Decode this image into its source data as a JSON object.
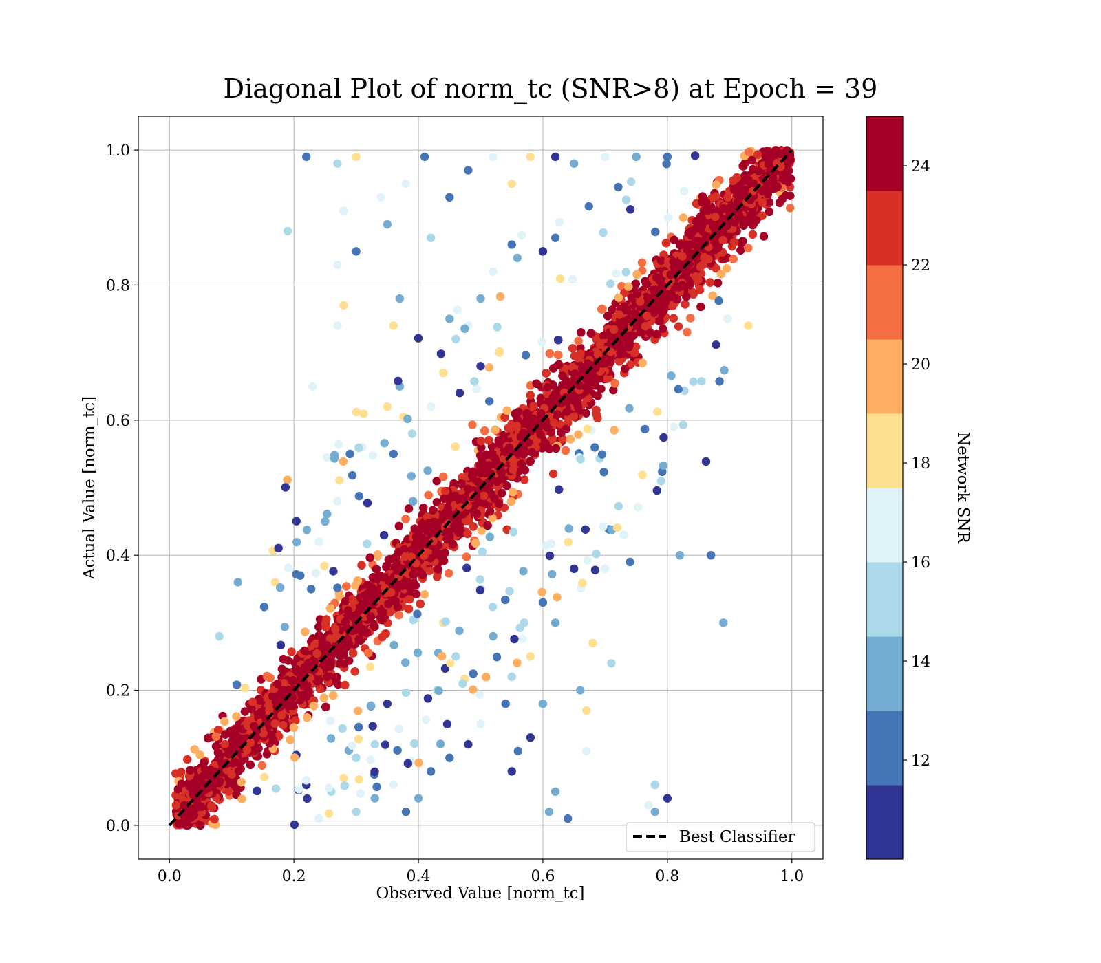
{
  "chart_data": {
    "type": "scatter",
    "title": "Diagonal Plot of norm_tc (SNR>8) at Epoch = 39",
    "xlabel": "Observed Value [norm_tc]",
    "ylabel": "Actual Value [norm_tc]",
    "xlim": [
      -0.05,
      1.05
    ],
    "ylim": [
      -0.05,
      1.05
    ],
    "xticks": [
      "0.0",
      "0.2",
      "0.4",
      "0.6",
      "0.8",
      "1.0"
    ],
    "yticks": [
      "0.0",
      "0.2",
      "0.4",
      "0.6",
      "0.8",
      "1.0"
    ],
    "grid": true,
    "legend": {
      "placement": "lower right",
      "entries": [
        "Best Classifier"
      ]
    },
    "reference_line": {
      "name": "Best Classifier",
      "style": "dashed",
      "color": "#000000",
      "x": [
        0,
        1
      ],
      "y": [
        0,
        1
      ]
    },
    "colorbar": {
      "label": "Network SNR",
      "range": [
        10,
        25
      ],
      "ticks": [
        "12",
        "14",
        "16",
        "18",
        "20",
        "22",
        "24"
      ],
      "colors": [
        "#313695",
        "#4575b4",
        "#74add1",
        "#abd9e9",
        "#e0f3f8",
        "#fee090",
        "#fdae61",
        "#f46d43",
        "#d73027",
        "#a50026"
      ]
    },
    "scatter_description_points": {
      "band_center": "y = x",
      "outliers": [
        [
          0.19,
          0.88
        ],
        [
          0.22,
          0.99
        ],
        [
          0.27,
          0.98
        ],
        [
          0.3,
          0.99
        ],
        [
          0.28,
          0.91
        ],
        [
          0.27,
          0.83
        ],
        [
          0.3,
          0.85
        ],
        [
          0.28,
          0.77
        ],
        [
          0.27,
          0.74
        ],
        [
          0.23,
          0.65
        ],
        [
          0.34,
          0.93
        ],
        [
          0.35,
          0.89
        ],
        [
          0.38,
          0.95
        ],
        [
          0.41,
          0.99
        ],
        [
          0.42,
          0.87
        ],
        [
          0.45,
          0.93
        ],
        [
          0.48,
          0.97
        ],
        [
          0.52,
          0.99
        ],
        [
          0.55,
          0.95
        ],
        [
          0.58,
          0.99
        ],
        [
          0.62,
          0.99
        ],
        [
          0.65,
          0.98
        ],
        [
          0.7,
          0.99
        ],
        [
          0.75,
          0.99
        ],
        [
          0.8,
          0.99
        ],
        [
          0.37,
          0.78
        ],
        [
          0.36,
          0.74
        ],
        [
          0.4,
          0.72
        ],
        [
          0.45,
          0.75
        ],
        [
          0.5,
          0.78
        ],
        [
          0.52,
          0.82
        ],
        [
          0.55,
          0.86
        ],
        [
          0.6,
          0.85
        ],
        [
          0.62,
          0.87
        ],
        [
          0.11,
          0.36
        ],
        [
          0.08,
          0.28
        ],
        [
          0.17,
          0.36
        ],
        [
          0.82,
          0.4
        ],
        [
          0.81,
          0.59
        ],
        [
          0.87,
          0.4
        ],
        [
          0.89,
          0.3
        ],
        [
          0.93,
          0.74
        ],
        [
          0.73,
          0.43
        ],
        [
          0.74,
          0.39
        ],
        [
          0.71,
          0.24
        ],
        [
          0.68,
          0.27
        ],
        [
          0.7,
          0.38
        ],
        [
          0.65,
          0.38
        ],
        [
          0.78,
          0.06
        ],
        [
          0.8,
          0.04
        ],
        [
          0.77,
          0.03
        ],
        [
          0.78,
          0.02
        ],
        [
          0.67,
          0.11
        ],
        [
          0.64,
          0.01
        ],
        [
          0.61,
          0.02
        ],
        [
          0.62,
          0.05
        ],
        [
          0.66,
          0.2
        ],
        [
          0.67,
          0.17
        ],
        [
          0.6,
          0.18
        ],
        [
          0.58,
          0.13
        ],
        [
          0.56,
          0.11
        ],
        [
          0.55,
          0.08
        ],
        [
          0.5,
          0.15
        ],
        [
          0.48,
          0.12
        ],
        [
          0.45,
          0.1
        ],
        [
          0.42,
          0.08
        ],
        [
          0.4,
          0.04
        ],
        [
          0.38,
          0.02
        ],
        [
          0.36,
          0.06
        ],
        [
          0.33,
          0.04
        ],
        [
          0.3,
          0.02
        ],
        [
          0.28,
          0.07
        ],
        [
          0.26,
          0.05
        ],
        [
          0.24,
          0.01
        ],
        [
          0.22,
          0.06
        ],
        [
          0.5,
          0.35
        ],
        [
          0.52,
          0.28
        ],
        [
          0.55,
          0.22
        ],
        [
          0.57,
          0.3
        ],
        [
          0.6,
          0.33
        ],
        [
          0.62,
          0.3
        ],
        [
          0.58,
          0.25
        ],
        [
          0.54,
          0.18
        ],
        [
          0.46,
          0.25
        ],
        [
          0.44,
          0.3
        ],
        [
          0.43,
          0.2
        ],
        [
          0.35,
          0.18
        ],
        [
          0.33,
          0.12
        ],
        [
          0.3,
          0.1
        ],
        [
          0.25,
          0.45
        ],
        [
          0.24,
          0.42
        ],
        [
          0.27,
          0.48
        ],
        [
          0.29,
          0.55
        ],
        [
          0.31,
          0.56
        ],
        [
          0.35,
          0.62
        ],
        [
          0.37,
          0.65
        ],
        [
          0.36,
          0.55
        ],
        [
          0.39,
          0.58
        ],
        [
          0.42,
          0.62
        ],
        [
          0.44,
          0.67
        ],
        [
          0.46,
          0.72
        ],
        [
          0.48,
          0.74
        ],
        [
          0.5,
          0.68
        ],
        [
          0.53,
          0.7
        ]
      ]
    }
  }
}
